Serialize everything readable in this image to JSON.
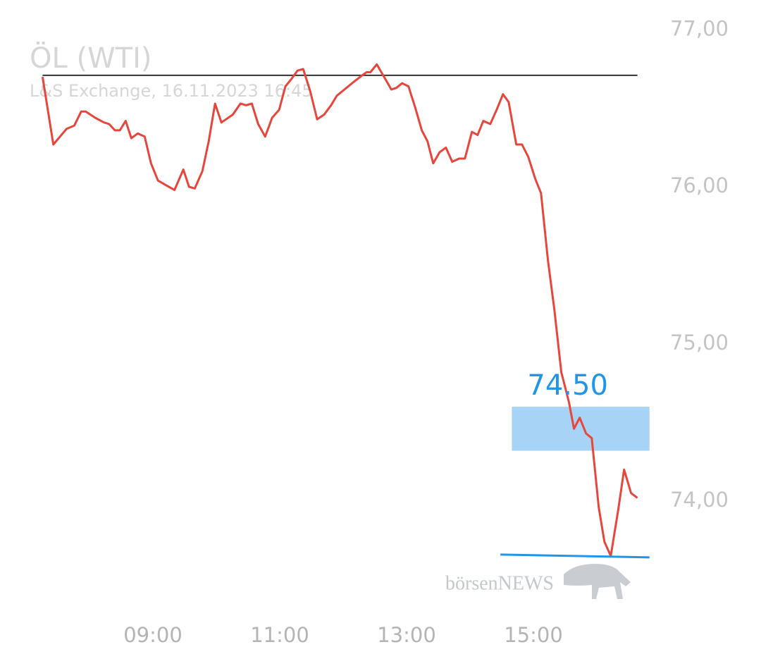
{
  "chart_data": {
    "type": "line",
    "title": "ÖL (WTI)",
    "subtitle": "L&S Exchange, 16.11.2023 16:45",
    "x": [
      7.26,
      7.43,
      7.64,
      7.76,
      7.87,
      7.94,
      8.09,
      8.23,
      8.31,
      8.4,
      8.48,
      8.57,
      8.66,
      8.76,
      8.87,
      8.97,
      9.08,
      9.21,
      9.34,
      9.48,
      9.57,
      9.66,
      9.78,
      9.88,
      9.98,
      10.08,
      10.26,
      10.38,
      10.47,
      10.56,
      10.66,
      10.77,
      10.88,
      10.99,
      11.09,
      11.19,
      11.28,
      11.37,
      11.48,
      11.59,
      11.7,
      11.81,
      11.9,
      12.14,
      12.3,
      12.37,
      12.43,
      12.53,
      12.66,
      12.76,
      12.84,
      12.93,
      13.03,
      13.14,
      13.24,
      13.33,
      13.42,
      13.52,
      13.62,
      13.72,
      13.83,
      13.92,
      14.03,
      14.12,
      14.21,
      14.32,
      14.42,
      14.52,
      14.61,
      14.73,
      14.82,
      14.92,
      15.03,
      15.12,
      15.23,
      15.33,
      15.44,
      15.56,
      15.64,
      15.73,
      15.83,
      15.92,
      16.03,
      16.12,
      16.22,
      16.34,
      16.43,
      16.54,
      16.64
    ],
    "series": [
      {
        "color": "#e8453c",
        "values": [
          76.7,
          76.27,
          76.37,
          76.39,
          76.48,
          76.48,
          76.44,
          76.41,
          76.4,
          76.36,
          76.36,
          76.42,
          76.31,
          76.34,
          76.32,
          76.15,
          76.04,
          76.01,
          75.98,
          76.11,
          76.0,
          75.99,
          76.1,
          76.29,
          76.53,
          76.41,
          76.46,
          76.53,
          76.52,
          76.53,
          76.4,
          76.32,
          76.44,
          76.49,
          76.64,
          76.69,
          76.74,
          76.75,
          76.61,
          76.43,
          76.46,
          76.52,
          76.58,
          76.66,
          76.71,
          76.73,
          76.73,
          76.78,
          76.69,
          76.62,
          76.63,
          76.66,
          76.64,
          76.5,
          76.36,
          76.29,
          76.15,
          76.22,
          76.25,
          76.16,
          76.18,
          76.18,
          76.35,
          76.33,
          76.42,
          76.4,
          76.49,
          76.59,
          76.54,
          76.27,
          76.27,
          76.19,
          76.05,
          75.96,
          75.53,
          75.22,
          74.82,
          74.63,
          74.46,
          74.53,
          74.43,
          74.4,
          73.96,
          73.74,
          73.65,
          73.95,
          74.2,
          74.05,
          74.02
        ]
      }
    ],
    "reference": {
      "value": 76.71,
      "x": [
        7.26,
        16.64
      ],
      "color": "#333333"
    },
    "zone": {
      "label": "74.50",
      "low": 74.32,
      "high": 74.6,
      "x": [
        14.66,
        16.83
      ],
      "color": "#a6d3f6",
      "label_color": "#2196e8"
    },
    "support": {
      "value": 73.65,
      "x": [
        14.48,
        16.83
      ],
      "color": "#2196e8"
    },
    "watermark": "börsenNEWS",
    "xlim": [
      7.0,
      17.0
    ],
    "xticks": [
      {
        "value": 9,
        "label": "09:00"
      },
      {
        "value": 11,
        "label": "11:00"
      },
      {
        "value": 13,
        "label": "13:00"
      },
      {
        "value": 15,
        "label": "15:00"
      }
    ],
    "ylim": [
      73.6,
      77.1
    ],
    "yticks": [
      {
        "value": 74,
        "label": "74,00"
      },
      {
        "value": 75,
        "label": "75,00"
      },
      {
        "value": 76,
        "label": "76,00"
      },
      {
        "value": 77,
        "label": "77,00"
      }
    ],
    "grid": false
  }
}
